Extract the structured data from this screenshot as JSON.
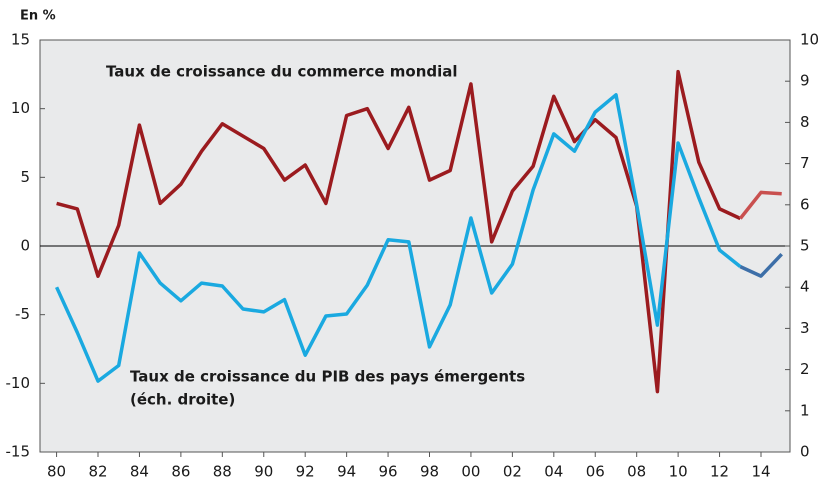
{
  "chart_data": {
    "type": "line",
    "unit_label": "En %",
    "x": [
      1980,
      1981,
      1982,
      1983,
      1984,
      1985,
      1986,
      1987,
      1988,
      1989,
      1990,
      1991,
      1992,
      1993,
      1994,
      1995,
      1996,
      1997,
      1998,
      1999,
      2000,
      2001,
      2002,
      2003,
      2004,
      2005,
      2006,
      2007,
      2008,
      2009,
      2010,
      2011,
      2012,
      2013,
      2014,
      2015
    ],
    "xlim": [
      1979.2,
      2015.4
    ],
    "xticks": [
      {
        "value": 1980,
        "label": "80"
      },
      {
        "value": 1982,
        "label": "82"
      },
      {
        "value": 1984,
        "label": "84"
      },
      {
        "value": 1986,
        "label": "86"
      },
      {
        "value": 1988,
        "label": "88"
      },
      {
        "value": 1990,
        "label": "90"
      },
      {
        "value": 1992,
        "label": "92"
      },
      {
        "value": 1994,
        "label": "94"
      },
      {
        "value": 1996,
        "label": "96"
      },
      {
        "value": 1998,
        "label": "98"
      },
      {
        "value": 2000,
        "label": "00"
      },
      {
        "value": 2002,
        "label": "02"
      },
      {
        "value": 2004,
        "label": "04"
      },
      {
        "value": 2006,
        "label": "06"
      },
      {
        "value": 2008,
        "label": "08"
      },
      {
        "value": 2010,
        "label": "10"
      },
      {
        "value": 2012,
        "label": "12"
      },
      {
        "value": 2014,
        "label": "14"
      }
    ],
    "ylim": [
      -15,
      15
    ],
    "yticks": [
      -15,
      -10,
      -5,
      0,
      5,
      10,
      15
    ],
    "y2lim": [
      0,
      10
    ],
    "y2ticks": [
      0,
      1,
      2,
      3,
      4,
      5,
      6,
      7,
      8,
      9,
      10
    ],
    "series": [
      {
        "name": "Taux de croissance du commerce mondial",
        "color": "#9b1b1f",
        "projection": {
          "from": 2013,
          "color": "#c9504f"
        },
        "values": [
          3.1,
          2.7,
          -2.2,
          1.5,
          8.8,
          3.1,
          4.5,
          6.9,
          8.9,
          8.0,
          7.1,
          4.8,
          5.9,
          3.1,
          9.5,
          10.0,
          7.1,
          10.1,
          4.8,
          5.5,
          11.8,
          0.3,
          4.0,
          5.8,
          10.9,
          7.6,
          9.2,
          7.9,
          2.9,
          -10.6,
          12.7,
          6.1,
          2.7,
          2.0,
          3.9,
          3.8
        ]
      },
      {
        "name": "Taux de croissance du PIB des pays émergents",
        "name_note": "(éch. droite)",
        "color": "#1aa9e0",
        "axis": "y2",
        "projection": {
          "from": 2013,
          "color": "#3d6fa8"
        },
        "values": [
          4.0,
          2.9,
          1.72,
          2.1,
          4.83,
          4.1,
          3.67,
          4.1,
          4.03,
          3.47,
          3.4,
          3.7,
          2.35,
          3.3,
          3.35,
          4.05,
          5.15,
          5.1,
          2.55,
          3.57,
          5.68,
          3.86,
          4.56,
          6.36,
          7.72,
          7.3,
          8.25,
          8.67,
          6.0,
          3.08,
          7.5,
          6.17,
          4.9,
          4.5,
          4.27,
          4.8
        ]
      }
    ]
  }
}
